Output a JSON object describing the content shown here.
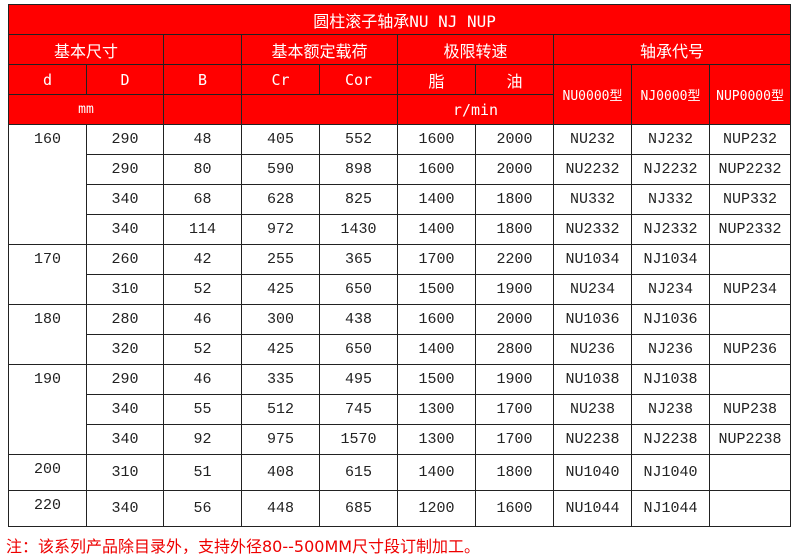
{
  "title": "圆柱滚子轴承NU NJ NUP",
  "header": {
    "basic_dims": "基本尺寸",
    "basic_load": "基本额定载荷",
    "speed": "极限转速",
    "code": "轴承代号",
    "d": "d",
    "D": "D",
    "B": "B",
    "Cr": "Cr",
    "Cor": "Cor",
    "grease": "脂",
    "oil": "油",
    "mm": "mm",
    "rmin": "r/min",
    "nu": "NU0000型",
    "nj": "NJ0000型",
    "nup": "NUP0000型"
  },
  "colors": {
    "header_bg": "#ff0000",
    "note": "#e00000"
  },
  "groups": [
    {
      "d": "160",
      "rows": [
        [
          "290",
          "48",
          "405",
          "552",
          "1600",
          "2000",
          "NU232",
          "NJ232",
          "NUP232"
        ],
        [
          "290",
          "80",
          "590",
          "898",
          "1600",
          "2000",
          "NU2232",
          "NJ2232",
          "NUP2232"
        ],
        [
          "340",
          "68",
          "628",
          "825",
          "1400",
          "1800",
          "NU332",
          "NJ332",
          "NUP332"
        ],
        [
          "340",
          "114",
          "972",
          "1430",
          "1400",
          "1800",
          "NU2332",
          "NJ2332",
          "NUP2332"
        ]
      ]
    },
    {
      "d": "170",
      "rows": [
        [
          "260",
          "42",
          "255",
          "365",
          "1700",
          "2200",
          "NU1034",
          "NJ1034",
          ""
        ],
        [
          "310",
          "52",
          "425",
          "650",
          "1500",
          "1900",
          "NU234",
          "NJ234",
          "NUP234"
        ]
      ]
    },
    {
      "d": "180",
      "rows": [
        [
          "280",
          "46",
          "300",
          "438",
          "1600",
          "2000",
          "NU1036",
          "NJ1036",
          ""
        ],
        [
          "320",
          "52",
          "425",
          "650",
          "1400",
          "2800",
          "NU236",
          "NJ236",
          "NUP236"
        ]
      ]
    },
    {
      "d": "190",
      "rows": [
        [
          "290",
          "46",
          "335",
          "495",
          "1500",
          "1900",
          "NU1038",
          "NJ1038",
          ""
        ],
        [
          "340",
          "55",
          "512",
          "745",
          "1300",
          "1700",
          "NU238",
          "NJ238",
          "NUP238"
        ],
        [
          "340",
          "92",
          "975",
          "1570",
          "1300",
          "1700",
          "NU2238",
          "NJ2238",
          "NUP2238"
        ]
      ]
    },
    {
      "d": "200",
      "rows": [
        [
          "310",
          "51",
          "408",
          "615",
          "1400",
          "1800",
          "NU1040",
          "NJ1040",
          ""
        ]
      ]
    },
    {
      "d": "220",
      "rows": [
        [
          "340",
          "56",
          "448",
          "685",
          "1200",
          "1600",
          "NU1044",
          "NJ1044",
          ""
        ]
      ]
    }
  ],
  "note": "注：该系列产品除目录外，支持外径80--500MM尺寸段订制加工。"
}
